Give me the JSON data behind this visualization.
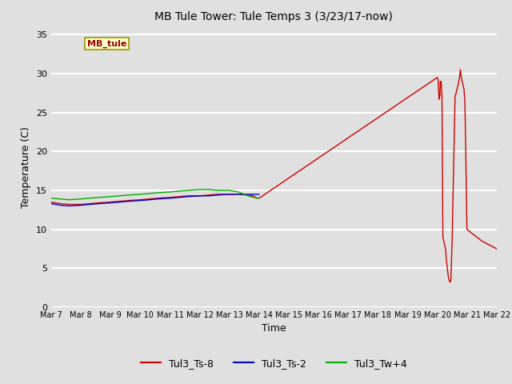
{
  "title": "MB Tule Tower: Tule Temps 3 (3/23/17-now)",
  "xlabel": "Time",
  "ylabel": "Temperature (C)",
  "ylim": [
    0,
    36
  ],
  "yticks": [
    0,
    5,
    10,
    15,
    20,
    25,
    30,
    35
  ],
  "bg_color": "#e0e0e0",
  "grid_color": "#ffffff",
  "legend_labels": [
    "Tul3_Ts-8",
    "Tul3_Ts-2",
    "Tul3_Tw+4"
  ],
  "legend_colors": [
    "#cc0000",
    "#0000cc",
    "#00aa00"
  ],
  "watermark_text": "MB_tule",
  "watermark_bg": "#ffffcc",
  "watermark_border": "#999900",
  "xtick_labels": [
    "Mar 7",
    "Mar 8",
    "Mar 9",
    "Mar 10",
    "Mar 11",
    "Mar 12",
    "Mar 13",
    "Mar 14",
    "Mar 15",
    "Mar 16",
    "Mar 17",
    "Mar 18",
    "Mar 19",
    "Mar 20",
    "Mar 21",
    "Mar 22"
  ],
  "xlim": [
    0,
    15
  ],
  "ts8_x": [
    0.0,
    0.3,
    0.6,
    1.0,
    1.3,
    1.6,
    2.0,
    2.3,
    2.6,
    3.0,
    3.3,
    3.6,
    4.0,
    4.3,
    4.6,
    5.0,
    5.3,
    5.6,
    6.0,
    6.3,
    6.6,
    6.8,
    6.85,
    6.88,
    6.9,
    6.95,
    7.0,
    13.0,
    13.03,
    13.06,
    13.09,
    13.1,
    13.13,
    13.16,
    13.19,
    13.22,
    13.25,
    13.28,
    13.31,
    13.34,
    13.37,
    13.4,
    13.43,
    13.46,
    13.5,
    13.6,
    13.7,
    13.75,
    13.78,
    13.81,
    13.84,
    13.87,
    13.9,
    13.93,
    13.96,
    14.0,
    14.5,
    15.0
  ],
  "ts8_y": [
    13.5,
    13.3,
    13.2,
    13.2,
    13.3,
    13.4,
    13.5,
    13.6,
    13.7,
    13.8,
    13.9,
    14.0,
    14.1,
    14.2,
    14.3,
    14.3,
    14.4,
    14.5,
    14.5,
    14.5,
    14.4,
    14.3,
    14.2,
    14.1,
    14.0,
    14.0,
    14.0,
    29.5,
    29.2,
    26.7,
    27.2,
    29.0,
    29.0,
    27.0,
    9.0,
    8.5,
    8.0,
    7.5,
    6.0,
    5.0,
    4.0,
    3.5,
    3.2,
    3.5,
    8.5,
    27.0,
    28.5,
    29.5,
    30.5,
    29.5,
    29.0,
    28.5,
    28.0,
    26.5,
    20.0,
    10.0,
    8.5,
    7.5
  ],
  "ts2_x": [
    0.0,
    0.3,
    0.6,
    1.0,
    1.3,
    1.6,
    2.0,
    2.3,
    2.6,
    3.0,
    3.3,
    3.6,
    4.0,
    4.3,
    4.6,
    5.0,
    5.3,
    5.6,
    6.0,
    6.3,
    6.6,
    7.0
  ],
  "ts2_y": [
    13.3,
    13.1,
    13.0,
    13.1,
    13.2,
    13.3,
    13.4,
    13.5,
    13.6,
    13.7,
    13.8,
    13.9,
    14.0,
    14.1,
    14.2,
    14.3,
    14.3,
    14.4,
    14.5,
    14.5,
    14.5,
    14.5
  ],
  "twp4_x": [
    0.0,
    0.3,
    0.6,
    1.0,
    1.3,
    1.6,
    2.0,
    2.3,
    2.6,
    3.0,
    3.3,
    3.6,
    4.0,
    4.3,
    4.6,
    5.0,
    5.3,
    5.6,
    6.0,
    6.3,
    6.5,
    6.7,
    7.0
  ],
  "twp4_y": [
    14.0,
    13.9,
    13.8,
    13.9,
    14.0,
    14.1,
    14.2,
    14.3,
    14.4,
    14.5,
    14.6,
    14.7,
    14.8,
    14.9,
    15.0,
    15.1,
    15.1,
    15.0,
    15.0,
    14.8,
    14.5,
    14.2,
    14.0
  ]
}
